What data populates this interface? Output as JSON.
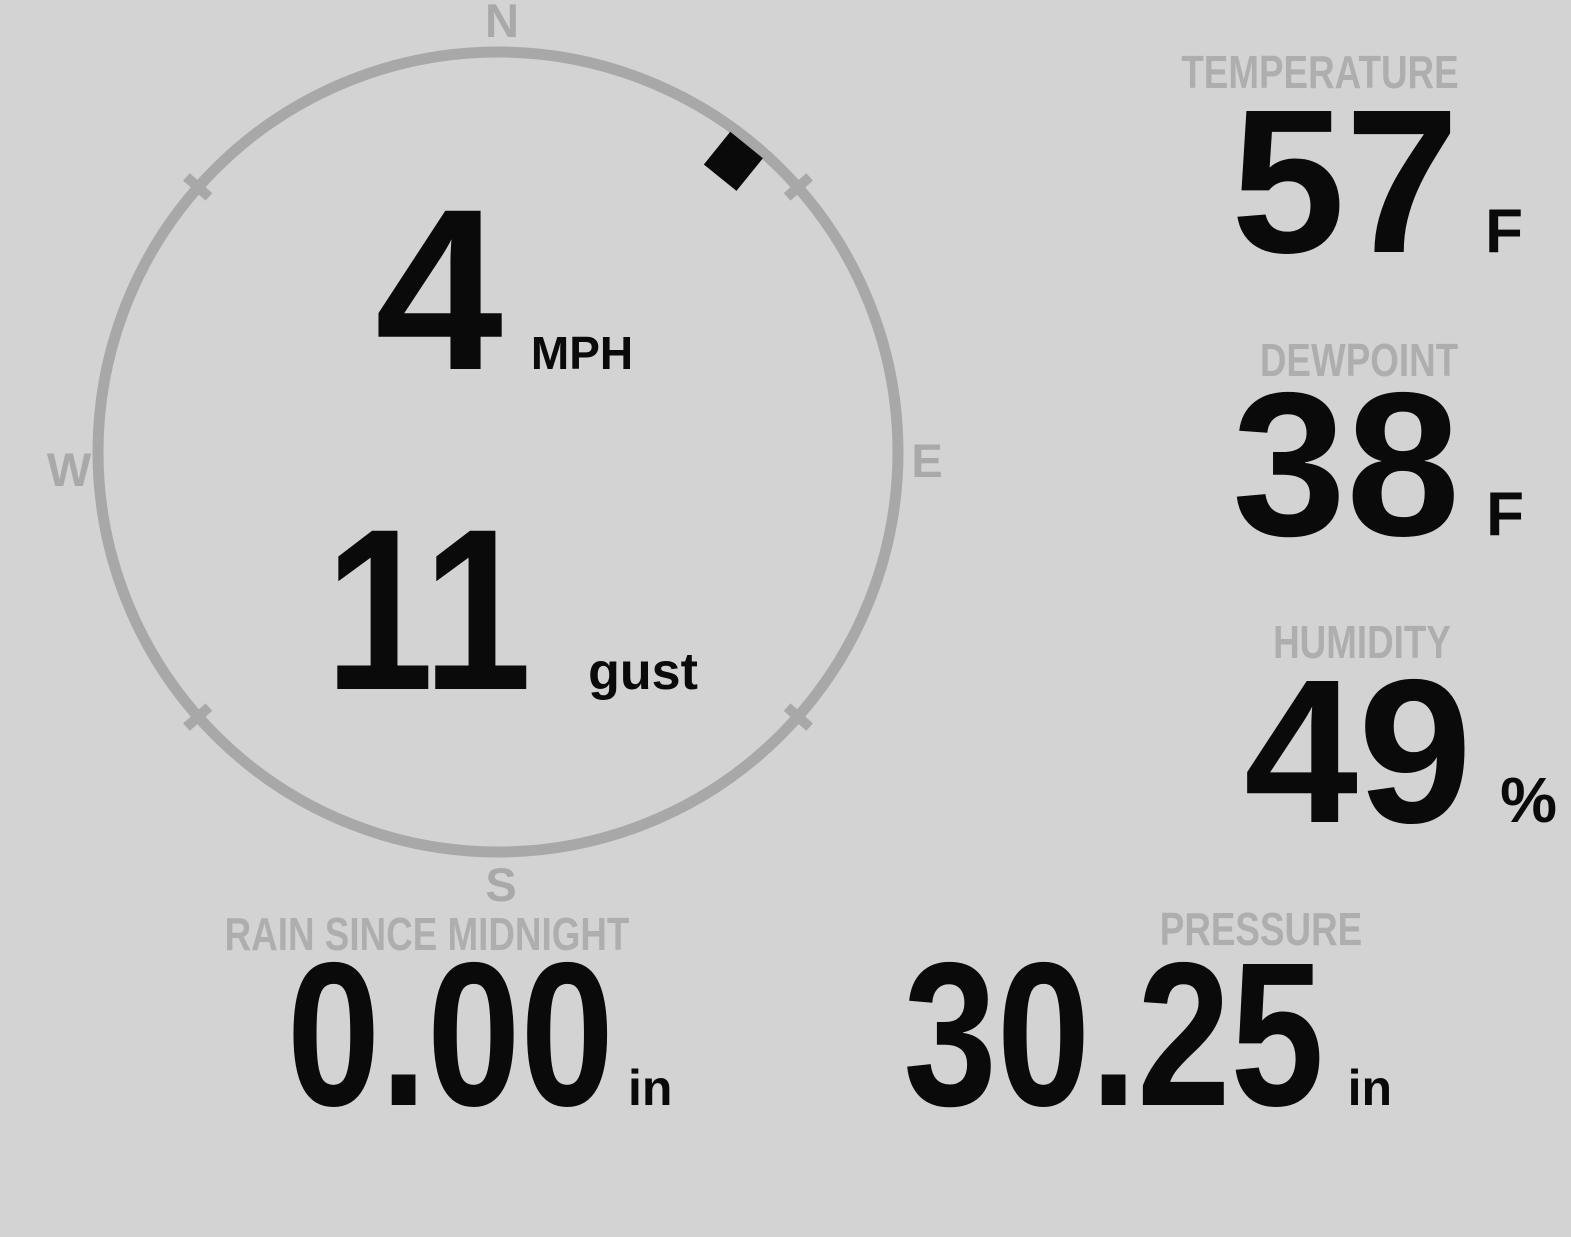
{
  "theme": {
    "background": "#d3d3d3",
    "value_color": "#0a0a0a",
    "label_color": "#aeaeae",
    "ring_color": "#a8a8a8",
    "cardinal_color": "#a9a9a9"
  },
  "compass": {
    "cardinals": {
      "north": "N",
      "east": "E",
      "south": "S",
      "west": "W"
    },
    "wind": {
      "speed": "4",
      "speed_unit": "MPH",
      "gust": "11",
      "gust_unit": "gust",
      "direction_deg": 39
    }
  },
  "metrics": {
    "temperature": {
      "label": "TEMPERATURE",
      "value": "57",
      "unit": "F"
    },
    "dewpoint": {
      "label": "DEWPOINT",
      "value": "38",
      "unit": "F"
    },
    "humidity": {
      "label": "HUMIDITY",
      "value": "49",
      "unit": "%"
    },
    "rain": {
      "label": "RAIN SINCE MIDNIGHT",
      "value": "0.00",
      "unit": "in"
    },
    "pressure": {
      "label": "PRESSURE",
      "value": "30.25",
      "unit": "in"
    }
  }
}
